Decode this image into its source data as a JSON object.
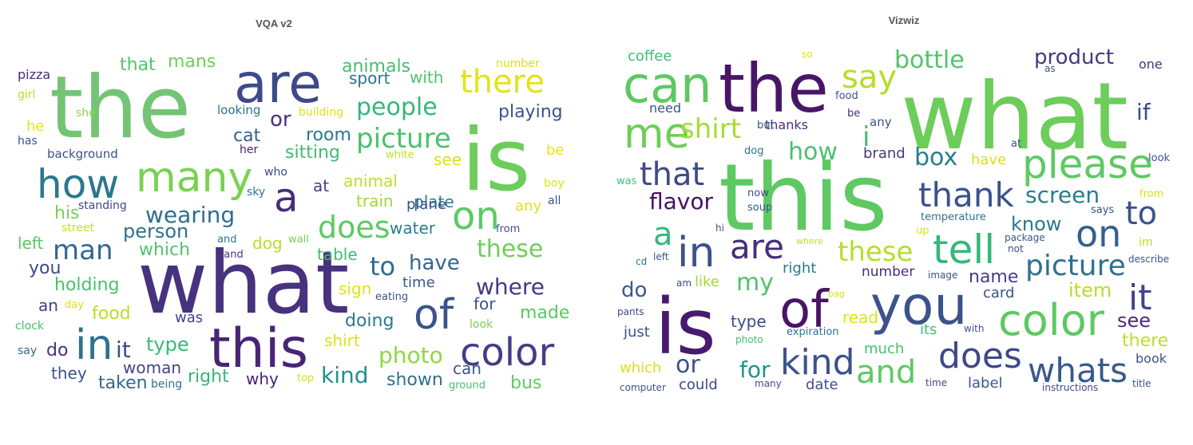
{
  "chart_data": [
    {
      "type": "wordcloud",
      "title": "VQA v2",
      "words": [
        {
          "text": "the",
          "color": "#74c476"
        },
        {
          "text": "what",
          "color": "#46327e"
        },
        {
          "text": "is",
          "color": "#6ccd5a"
        },
        {
          "text": "are",
          "color": "#3e4989"
        },
        {
          "text": "this",
          "color": "#482576"
        },
        {
          "text": "many",
          "color": "#7ad151"
        },
        {
          "text": "how",
          "color": "#2a788e"
        },
        {
          "text": "on",
          "color": "#5ec962"
        },
        {
          "text": "in",
          "color": "#2c728e"
        },
        {
          "text": "of",
          "color": "#3b528b"
        },
        {
          "text": "color",
          "color": "#433e85"
        },
        {
          "text": "there",
          "color": "#e2e418"
        },
        {
          "text": "a",
          "color": "#472c7a"
        },
        {
          "text": "does",
          "color": "#5ec962"
        },
        {
          "text": "picture",
          "color": "#4ac16d"
        },
        {
          "text": "people",
          "color": "#35b779"
        },
        {
          "text": "man",
          "color": "#31688e"
        },
        {
          "text": "wearing",
          "color": "#2e6e8e"
        },
        {
          "text": "these",
          "color": "#6ece58"
        },
        {
          "text": "where",
          "color": "#443983"
        },
        {
          "text": "photo",
          "color": "#8fd744"
        },
        {
          "text": "kind",
          "color": "#21918c"
        },
        {
          "text": "to",
          "color": "#2f6c8e"
        },
        {
          "text": "have",
          "color": "#31688e"
        },
        {
          "text": "or",
          "color": "#46327e"
        },
        {
          "text": "person",
          "color": "#2d708e"
        },
        {
          "text": "type",
          "color": "#38b977"
        },
        {
          "text": "it",
          "color": "#3e4a89"
        },
        {
          "text": "sitting",
          "color": "#3fbc73"
        },
        {
          "text": "playing",
          "color": "#3b528b"
        },
        {
          "text": "animals",
          "color": "#44bf70"
        },
        {
          "text": "with",
          "color": "#50c46a"
        },
        {
          "text": "sport",
          "color": "#2c728e"
        },
        {
          "text": "that",
          "color": "#54c568"
        },
        {
          "text": "mans",
          "color": "#6ece58"
        },
        {
          "text": "cat",
          "color": "#34618d"
        },
        {
          "text": "room",
          "color": "#2a788e"
        },
        {
          "text": "plate",
          "color": "#287c8e"
        },
        {
          "text": "see",
          "color": "#d8e219"
        },
        {
          "text": "animal",
          "color": "#bddf26"
        },
        {
          "text": "train",
          "color": "#a0da39"
        },
        {
          "text": "plane",
          "color": "#3b528b"
        },
        {
          "text": "water",
          "color": "#287d8e"
        },
        {
          "text": "dog",
          "color": "#b5de2b"
        },
        {
          "text": "table",
          "color": "#3fbc73"
        },
        {
          "text": "which",
          "color": "#50c46a"
        },
        {
          "text": "holding",
          "color": "#4ac16d"
        },
        {
          "text": "you",
          "color": "#3e4989"
        },
        {
          "text": "left",
          "color": "#58c765"
        },
        {
          "text": "food",
          "color": "#b8de29"
        },
        {
          "text": "was",
          "color": "#414487"
        },
        {
          "text": "doing",
          "color": "#2a788e"
        },
        {
          "text": "made",
          "color": "#58c765"
        },
        {
          "text": "for",
          "color": "#3b528b"
        },
        {
          "text": "time",
          "color": "#38598c"
        },
        {
          "text": "sign",
          "color": "#dde318"
        },
        {
          "text": "shirt",
          "color": "#dde318"
        },
        {
          "text": "woman",
          "color": "#414487"
        },
        {
          "text": "right",
          "color": "#35b779"
        },
        {
          "text": "why",
          "color": "#482475"
        },
        {
          "text": "they",
          "color": "#3b528b"
        },
        {
          "text": "taken",
          "color": "#31688e"
        },
        {
          "text": "do",
          "color": "#46337f"
        },
        {
          "text": "an",
          "color": "#433e85"
        },
        {
          "text": "shown",
          "color": "#2c728e"
        },
        {
          "text": "bus",
          "color": "#63cb5f"
        },
        {
          "text": "can",
          "color": "#38598c"
        },
        {
          "text": "his",
          "color": "#7ad151"
        },
        {
          "text": "any",
          "color": "#dde318"
        },
        {
          "text": "he",
          "color": "#e5e419"
        },
        {
          "text": "be",
          "color": "#e5e419"
        },
        {
          "text": "at",
          "color": "#414487"
        },
        {
          "text": "pizza",
          "color": "#472d7b"
        },
        {
          "text": "girl",
          "color": "#b5de2b"
        },
        {
          "text": "she",
          "color": "#8fd744"
        },
        {
          "text": "has",
          "color": "#3b528b"
        },
        {
          "text": "background",
          "color": "#3b528b"
        },
        {
          "text": "looking",
          "color": "#2c728e"
        },
        {
          "text": "building",
          "color": "#dde318"
        },
        {
          "text": "her",
          "color": "#482677"
        },
        {
          "text": "white",
          "color": "#c2df23"
        },
        {
          "text": "who",
          "color": "#3e4989"
        },
        {
          "text": "sky",
          "color": "#2a788e"
        },
        {
          "text": "standing",
          "color": "#3f4788"
        },
        {
          "text": "street",
          "color": "#c2df23"
        },
        {
          "text": "and",
          "color": "#2a788e"
        },
        {
          "text": "hand",
          "color": "#46337f"
        },
        {
          "text": "wall",
          "color": "#7ad151"
        },
        {
          "text": "from",
          "color": "#3b528b"
        },
        {
          "text": "number",
          "color": "#d8e219"
        },
        {
          "text": "boy",
          "color": "#d8e219"
        },
        {
          "text": "all",
          "color": "#3b528b"
        },
        {
          "text": "eating",
          "color": "#3b528b"
        },
        {
          "text": "day",
          "color": "#d8e219"
        },
        {
          "text": "look",
          "color": "#7ad151"
        },
        {
          "text": "clock",
          "color": "#44bf70"
        },
        {
          "text": "say",
          "color": "#31688e"
        },
        {
          "text": "top",
          "color": "#d8e219"
        },
        {
          "text": "being",
          "color": "#2c728e"
        },
        {
          "text": "ground",
          "color": "#44bf70"
        }
      ]
    },
    {
      "type": "wordcloud",
      "title": "Vizwiz",
      "words": [
        {
          "text": "what",
          "color": "#6ccd5a"
        },
        {
          "text": "this",
          "color": "#5ec962"
        },
        {
          "text": "the",
          "color": "#481668"
        },
        {
          "text": "is",
          "color": "#481a6c"
        },
        {
          "text": "can",
          "color": "#5ec962"
        },
        {
          "text": "you",
          "color": "#3b528b"
        },
        {
          "text": "of",
          "color": "#481467"
        },
        {
          "text": "color",
          "color": "#5ec962"
        },
        {
          "text": "me",
          "color": "#6ece58"
        },
        {
          "text": "please",
          "color": "#5ec962"
        },
        {
          "text": "tell",
          "color": "#35b779"
        },
        {
          "text": "shirt",
          "color": "#a8db34"
        },
        {
          "text": "say",
          "color": "#b5de2b"
        },
        {
          "text": "thank",
          "color": "#3b528b"
        },
        {
          "text": "on",
          "color": "#34608d"
        },
        {
          "text": "it",
          "color": "#414487"
        },
        {
          "text": "in",
          "color": "#3b528b"
        },
        {
          "text": "are",
          "color": "#472c7a"
        },
        {
          "text": "kind",
          "color": "#3b528b"
        },
        {
          "text": "and",
          "color": "#5ec962"
        },
        {
          "text": "does",
          "color": "#3e4989"
        },
        {
          "text": "whats",
          "color": "#38598c"
        },
        {
          "text": "picture",
          "color": "#2c728e"
        },
        {
          "text": "that",
          "color": "#3e4989"
        },
        {
          "text": "these",
          "color": "#b5de2b"
        },
        {
          "text": "bottle",
          "color": "#50c46a"
        },
        {
          "text": "product",
          "color": "#443983"
        },
        {
          "text": "screen",
          "color": "#287d8e"
        },
        {
          "text": "box",
          "color": "#287d8e"
        },
        {
          "text": "how",
          "color": "#4ac16d"
        },
        {
          "text": "i",
          "color": "#44bf70"
        },
        {
          "text": "if",
          "color": "#3e4989"
        },
        {
          "text": "to",
          "color": "#3b528b"
        },
        {
          "text": "a",
          "color": "#35b779"
        },
        {
          "text": "my",
          "color": "#50c46a"
        },
        {
          "text": "or",
          "color": "#3b528b"
        },
        {
          "text": "for",
          "color": "#21918c"
        },
        {
          "text": "flavor",
          "color": "#471063"
        },
        {
          "text": "know",
          "color": "#2a788e"
        },
        {
          "text": "item",
          "color": "#b5de2b"
        },
        {
          "text": "see",
          "color": "#472c7a"
        },
        {
          "text": "there",
          "color": "#bddf26"
        },
        {
          "text": "name",
          "color": "#433e85"
        },
        {
          "text": "do",
          "color": "#38598c"
        },
        {
          "text": "coffee",
          "color": "#3fbc73"
        },
        {
          "text": "need",
          "color": "#3b528b"
        },
        {
          "text": "thanks",
          "color": "#46327e"
        },
        {
          "text": "brand",
          "color": "#443983"
        },
        {
          "text": "have",
          "color": "#d8e219"
        },
        {
          "text": "one",
          "color": "#46337f"
        },
        {
          "text": "look",
          "color": "#3b528b"
        },
        {
          "text": "right",
          "color": "#2a788e"
        },
        {
          "text": "number",
          "color": "#472c7a"
        },
        {
          "text": "card",
          "color": "#3b528b"
        },
        {
          "text": "type",
          "color": "#3e4989"
        },
        {
          "text": "read",
          "color": "#dde318"
        },
        {
          "text": "much",
          "color": "#44bf70"
        },
        {
          "text": "its",
          "color": "#44bf70"
        },
        {
          "text": "label",
          "color": "#38598c"
        },
        {
          "text": "book",
          "color": "#3b528b"
        },
        {
          "text": "which",
          "color": "#d8e219"
        },
        {
          "text": "could",
          "color": "#3e4989"
        },
        {
          "text": "just",
          "color": "#3b528b"
        },
        {
          "text": "date",
          "color": "#3b528b"
        },
        {
          "text": "like",
          "color": "#a0da39"
        },
        {
          "text": "food",
          "color": "#3b528b"
        },
        {
          "text": "be",
          "color": "#472c7a"
        },
        {
          "text": "any",
          "color": "#3b528b"
        },
        {
          "text": "so",
          "color": "#d8e219"
        },
        {
          "text": "as",
          "color": "#3b528b"
        },
        {
          "text": "but",
          "color": "#3b528b"
        },
        {
          "text": "dog",
          "color": "#2c728e"
        },
        {
          "text": "at",
          "color": "#3b528b"
        },
        {
          "text": "was",
          "color": "#44bf70"
        },
        {
          "text": "now",
          "color": "#3e4989"
        },
        {
          "text": "soup",
          "color": "#38598c"
        },
        {
          "text": "temperature",
          "color": "#2c728e"
        },
        {
          "text": "from",
          "color": "#d8e219"
        },
        {
          "text": "says",
          "color": "#3b528b"
        },
        {
          "text": "up",
          "color": "#d8e219"
        },
        {
          "text": "hi",
          "color": "#3b528b"
        },
        {
          "text": "package",
          "color": "#3b528b"
        },
        {
          "text": "not",
          "color": "#3e4989"
        },
        {
          "text": "im",
          "color": "#b5de2b"
        },
        {
          "text": "where",
          "color": "#c2df23"
        },
        {
          "text": "cd",
          "color": "#2c728e"
        },
        {
          "text": "left",
          "color": "#3b528b"
        },
        {
          "text": "describe",
          "color": "#3b528b"
        },
        {
          "text": "am",
          "color": "#3e4989"
        },
        {
          "text": "image",
          "color": "#3b528b"
        },
        {
          "text": "bag",
          "color": "#d8e219"
        },
        {
          "text": "pants",
          "color": "#3e4989"
        },
        {
          "text": "photo",
          "color": "#44bf70"
        },
        {
          "text": "expiration",
          "color": "#2c728e"
        },
        {
          "text": "with",
          "color": "#3b528b"
        },
        {
          "text": "computer",
          "color": "#3b528b"
        },
        {
          "text": "many",
          "color": "#3b528b"
        },
        {
          "text": "time",
          "color": "#3e4989"
        },
        {
          "text": "instructions",
          "color": "#3e4989"
        },
        {
          "text": "title",
          "color": "#3b528b"
        }
      ]
    }
  ]
}
